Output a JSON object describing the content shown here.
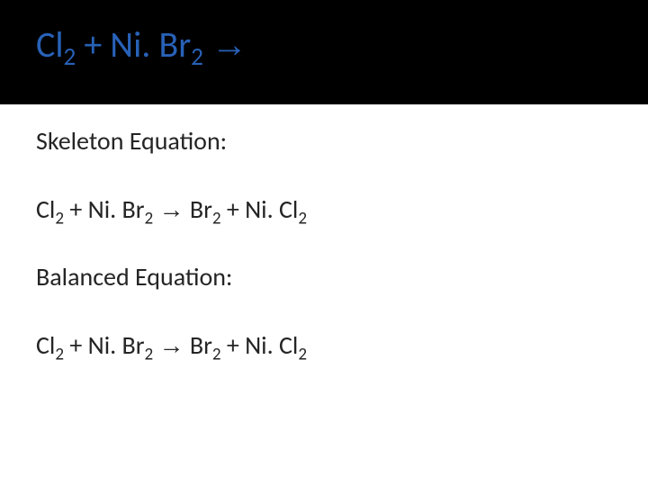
{
  "colors": {
    "header_bg": "#000000",
    "title_color": "#2861b7",
    "body_bg": "#ffffff",
    "text_color": "#252525"
  },
  "typography": {
    "title_fontsize": 40,
    "body_fontsize": 28,
    "font_family": "Calibri"
  },
  "title": {
    "parts": [
      "Cl",
      "2",
      " + Ni. Br",
      "2",
      " ",
      "→",
      ""
    ]
  },
  "body": {
    "line1_label": "Skeleton Equation:",
    "line2": {
      "parts": [
        "Cl",
        "2",
        " + Ni. Br",
        "2",
        " ",
        "→",
        " Br",
        "2",
        " + Ni. Cl",
        "2"
      ]
    },
    "line3_label": "Balanced Equation:",
    "line4": {
      "parts": [
        "Cl",
        "2",
        " + Ni. Br",
        "2",
        " ",
        "→",
        " Br",
        "2",
        " + Ni. Cl",
        "2"
      ]
    }
  }
}
